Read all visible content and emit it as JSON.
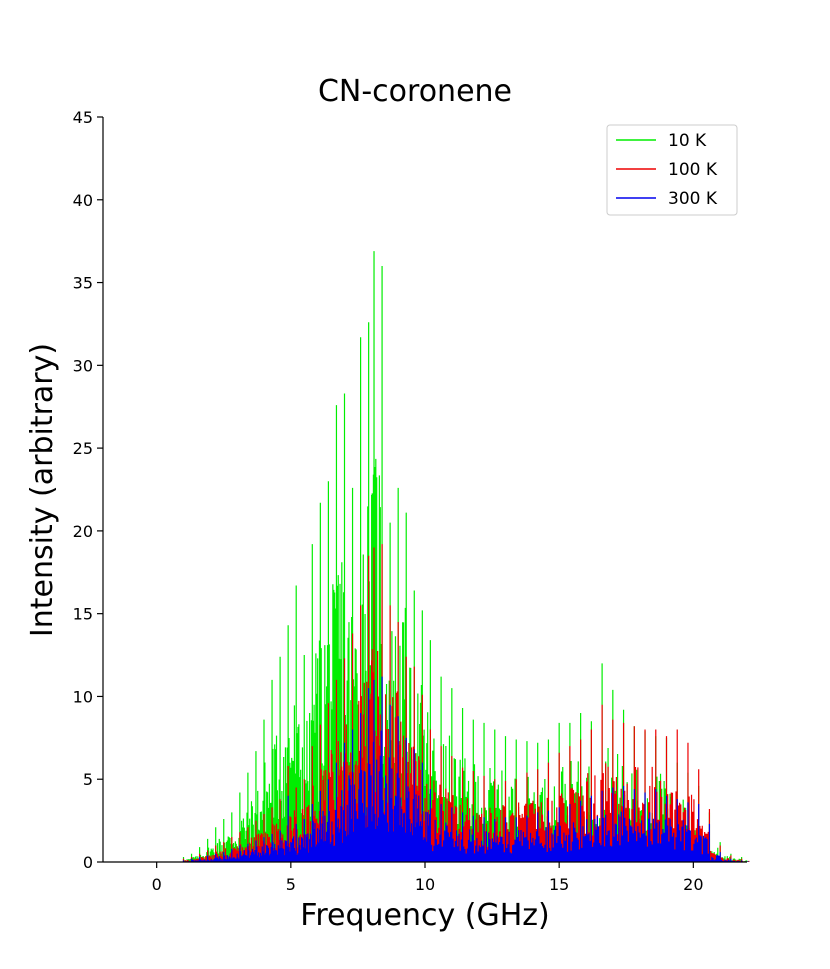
{
  "chart_data": {
    "type": "line",
    "title": "CN-coronene",
    "xlabel": "Frequency (GHz)",
    "ylabel": "Intensity (arbitrary)",
    "xlim": [
      -2,
      22
    ],
    "ylim": [
      0,
      45
    ],
    "xticks": [
      0,
      5,
      10,
      15,
      20
    ],
    "yticks": [
      0,
      5,
      10,
      15,
      20,
      25,
      30,
      35,
      40,
      45
    ],
    "legend_position": "top-right",
    "series": [
      {
        "name": "10 K",
        "color": "#00ee00",
        "peaks": [
          [
            1.0,
            0.3
          ],
          [
            1.3,
            0.5
          ],
          [
            1.6,
            0.9
          ],
          [
            1.9,
            1.4
          ],
          [
            2.2,
            2.1
          ],
          [
            2.5,
            2.6
          ],
          [
            2.8,
            3.0
          ],
          [
            3.1,
            4.2
          ],
          [
            3.4,
            5.4
          ],
          [
            3.7,
            6.7
          ],
          [
            4.0,
            8.6
          ],
          [
            4.3,
            11.0
          ],
          [
            4.6,
            12.4
          ],
          [
            4.9,
            14.3
          ],
          [
            5.2,
            16.7
          ],
          [
            5.5,
            12.5
          ],
          [
            5.8,
            19.2
          ],
          [
            6.1,
            21.7
          ],
          [
            6.4,
            23.0
          ],
          [
            6.7,
            27.6
          ],
          [
            7.0,
            28.3
          ],
          [
            7.3,
            22.6
          ],
          [
            7.6,
            31.7
          ],
          [
            7.9,
            32.6
          ],
          [
            8.1,
            36.9
          ],
          [
            8.4,
            36.0
          ],
          [
            8.7,
            20.5
          ],
          [
            9.0,
            22.6
          ],
          [
            9.3,
            21.1
          ],
          [
            9.6,
            16.4
          ],
          [
            9.9,
            15.2
          ],
          [
            10.2,
            13.4
          ],
          [
            10.6,
            11.2
          ],
          [
            11.0,
            10.5
          ],
          [
            11.4,
            9.3
          ],
          [
            11.8,
            8.6
          ],
          [
            12.2,
            8.4
          ],
          [
            12.6,
            8.0
          ],
          [
            13.0,
            7.6
          ],
          [
            13.4,
            7.4
          ],
          [
            13.8,
            7.3
          ],
          [
            14.2,
            7.2
          ],
          [
            14.6,
            7.4
          ],
          [
            15.0,
            8.4
          ],
          [
            15.4,
            8.4
          ],
          [
            15.8,
            9.0
          ],
          [
            16.2,
            8.5
          ],
          [
            16.6,
            12.0
          ],
          [
            17.0,
            10.4
          ],
          [
            17.4,
            9.2
          ],
          [
            17.8,
            8.2
          ],
          [
            18.2,
            7.9
          ],
          [
            18.6,
            7.6
          ],
          [
            19.0,
            7.5
          ],
          [
            19.4,
            6.0
          ],
          [
            19.8,
            5.4
          ],
          [
            20.2,
            4.6
          ],
          [
            20.6,
            3.0
          ],
          [
            21.0,
            1.2
          ],
          [
            21.4,
            0.5
          ],
          [
            21.8,
            0.3
          ]
        ]
      },
      {
        "name": "100 K",
        "color": "#ee0000",
        "peaks": [
          [
            1.0,
            0.2
          ],
          [
            1.3,
            0.3
          ],
          [
            1.6,
            0.5
          ],
          [
            1.9,
            0.7
          ],
          [
            2.2,
            1.0
          ],
          [
            2.5,
            1.2
          ],
          [
            2.8,
            1.5
          ],
          [
            3.1,
            1.8
          ],
          [
            3.4,
            2.1
          ],
          [
            3.7,
            2.5
          ],
          [
            4.0,
            2.9
          ],
          [
            4.3,
            3.3
          ],
          [
            4.6,
            3.8
          ],
          [
            4.9,
            5.8
          ],
          [
            5.2,
            4.5
          ],
          [
            5.5,
            5.0
          ],
          [
            5.8,
            7.0
          ],
          [
            6.1,
            8.3
          ],
          [
            6.4,
            9.6
          ],
          [
            6.7,
            11.0
          ],
          [
            7.0,
            12.3
          ],
          [
            7.3,
            13.8
          ],
          [
            7.6,
            15.5
          ],
          [
            7.9,
            18.5
          ],
          [
            8.1,
            19.0
          ],
          [
            8.4,
            19.2
          ],
          [
            8.7,
            15.5
          ],
          [
            9.0,
            14.5
          ],
          [
            9.3,
            12.4
          ],
          [
            9.6,
            11.8
          ],
          [
            9.9,
            10.1
          ],
          [
            10.2,
            8.0
          ],
          [
            10.6,
            7.0
          ],
          [
            11.0,
            6.4
          ],
          [
            11.4,
            5.7
          ],
          [
            11.8,
            5.5
          ],
          [
            12.2,
            5.2
          ],
          [
            12.6,
            5.0
          ],
          [
            13.0,
            4.9
          ],
          [
            13.4,
            5.0
          ],
          [
            13.8,
            5.4
          ],
          [
            14.2,
            5.6
          ],
          [
            14.6,
            6.0
          ],
          [
            15.0,
            6.6
          ],
          [
            15.4,
            7.0
          ],
          [
            15.8,
            7.4
          ],
          [
            16.2,
            8.0
          ],
          [
            16.6,
            9.5
          ],
          [
            17.0,
            8.6
          ],
          [
            17.4,
            8.4
          ],
          [
            17.8,
            8.2
          ],
          [
            18.2,
            8.0
          ],
          [
            18.6,
            8.0
          ],
          [
            19.0,
            7.6
          ],
          [
            19.4,
            8.0
          ],
          [
            19.8,
            7.2
          ],
          [
            20.2,
            5.6
          ],
          [
            20.6,
            3.2
          ],
          [
            21.0,
            1.0
          ],
          [
            21.4,
            0.4
          ],
          [
            21.8,
            0.2
          ]
        ]
      },
      {
        "name": "300 K",
        "color": "#0000ee",
        "peaks": [
          [
            1.0,
            0.1
          ],
          [
            1.3,
            0.2
          ],
          [
            1.6,
            0.3
          ],
          [
            1.9,
            0.4
          ],
          [
            2.2,
            0.5
          ],
          [
            2.5,
            0.6
          ],
          [
            2.8,
            0.8
          ],
          [
            3.1,
            1.0
          ],
          [
            3.4,
            1.1
          ],
          [
            3.7,
            1.3
          ],
          [
            4.0,
            1.5
          ],
          [
            4.3,
            1.7
          ],
          [
            4.6,
            1.9
          ],
          [
            4.9,
            4.0
          ],
          [
            5.2,
            2.3
          ],
          [
            5.5,
            2.6
          ],
          [
            5.8,
            3.5
          ],
          [
            6.1,
            4.3
          ],
          [
            6.4,
            5.0
          ],
          [
            6.7,
            6.0
          ],
          [
            7.0,
            7.2
          ],
          [
            7.3,
            8.0
          ],
          [
            7.6,
            9.0
          ],
          [
            7.9,
            10.5
          ],
          [
            8.1,
            11.0
          ],
          [
            8.4,
            11.2
          ],
          [
            8.7,
            9.5
          ],
          [
            9.0,
            8.8
          ],
          [
            9.3,
            7.5
          ],
          [
            9.6,
            6.8
          ],
          [
            9.9,
            6.0
          ],
          [
            10.2,
            4.4
          ],
          [
            10.6,
            3.5
          ],
          [
            11.0,
            3.3
          ],
          [
            11.4,
            3.0
          ],
          [
            11.8,
            2.8
          ],
          [
            12.2,
            2.7
          ],
          [
            12.6,
            2.6
          ],
          [
            13.0,
            2.7
          ],
          [
            13.4,
            2.7
          ],
          [
            13.8,
            2.8
          ],
          [
            14.2,
            3.0
          ],
          [
            14.6,
            3.1
          ],
          [
            15.0,
            3.3
          ],
          [
            15.4,
            3.5
          ],
          [
            15.8,
            3.7
          ],
          [
            16.2,
            4.0
          ],
          [
            16.6,
            4.3
          ],
          [
            17.0,
            4.5
          ],
          [
            17.4,
            4.6
          ],
          [
            17.8,
            4.4
          ],
          [
            18.2,
            4.2
          ],
          [
            18.6,
            4.4
          ],
          [
            19.0,
            4.0
          ],
          [
            19.4,
            3.8
          ],
          [
            19.8,
            3.6
          ],
          [
            20.2,
            3.5
          ],
          [
            20.6,
            2.3
          ],
          [
            21.0,
            0.6
          ],
          [
            21.4,
            0.2
          ],
          [
            21.8,
            0.1
          ]
        ]
      }
    ]
  }
}
